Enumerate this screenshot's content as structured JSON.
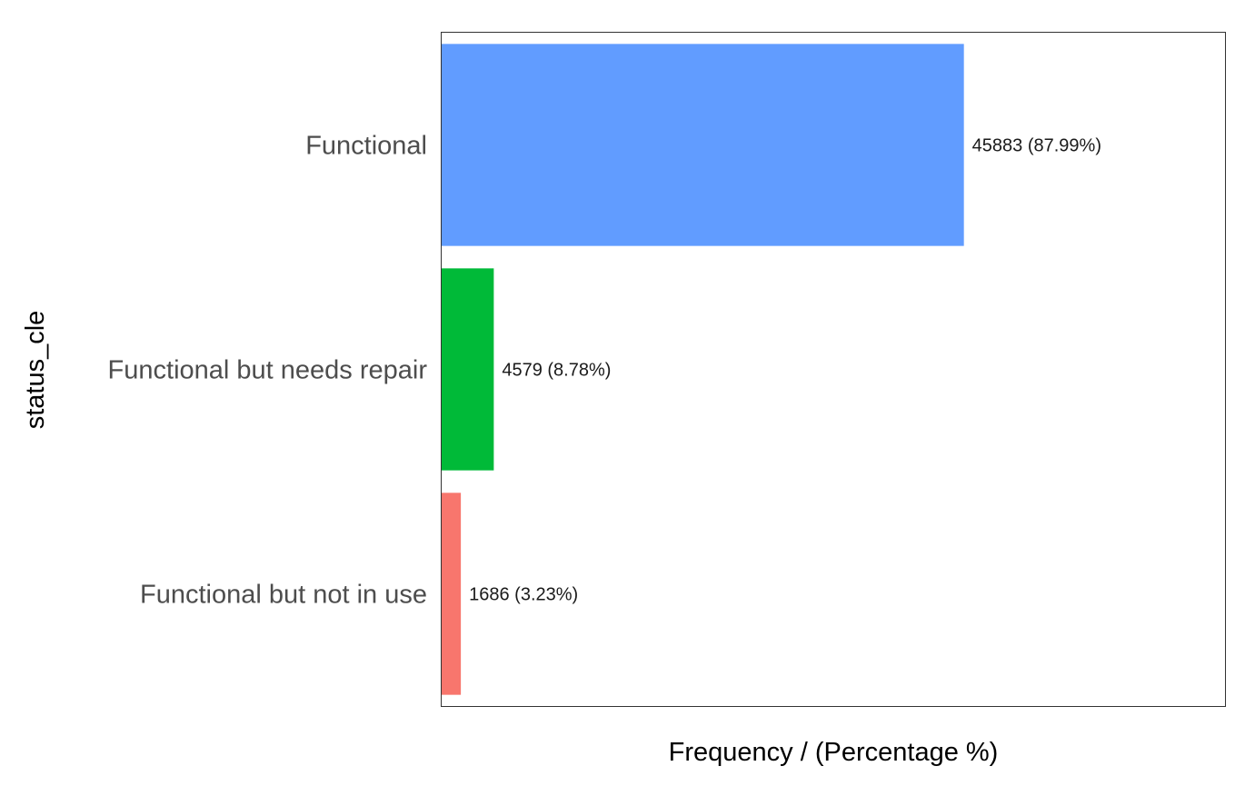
{
  "chart_data": {
    "type": "bar",
    "orientation": "horizontal",
    "xlabel": "Frequency / (Percentage %)",
    "ylabel": "status_cle",
    "categories": [
      "Functional",
      "Functional but needs repair",
      "Functional but not in use"
    ],
    "values": [
      45883,
      4579,
      1686
    ],
    "percentages": [
      87.99,
      8.78,
      3.23
    ],
    "data_labels": [
      "45883 (87.99%)",
      "4579 (8.78%)",
      "1686 (3.23%)"
    ],
    "colors": [
      "#619CFF",
      "#00BA38",
      "#F8766D"
    ],
    "xlim": [
      0,
      68824
    ],
    "grid": false,
    "legend": "none"
  }
}
